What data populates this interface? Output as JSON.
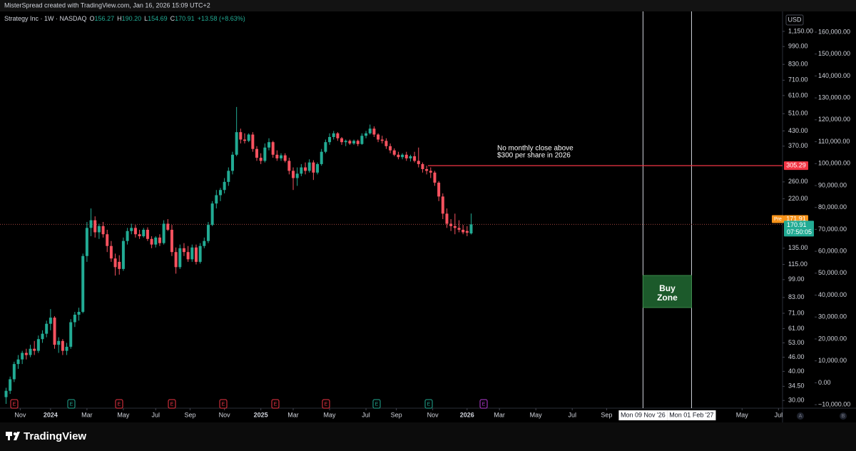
{
  "header": "MisterSpread created with TradingView.com, Jan 16, 2026 15:09 UTC+2",
  "footer_logo": "TradingView",
  "chart_data": {
    "type": "candlestick",
    "legend": {
      "symbol": "Strategy Inc · 1W · NASDAQ",
      "items": [
        {
          "key": "O",
          "value": "156.27"
        },
        {
          "key": "H",
          "value": "190.20"
        },
        {
          "key": "L",
          "value": "154.69"
        },
        {
          "key": "C",
          "value": "170.91"
        }
      ],
      "change": "+13.58 (+8.63%)"
    },
    "currency": "USD",
    "up_color": "#22ab94",
    "down_color": "#f7525f",
    "log_scale": true,
    "grid": false,
    "ylim": [
      27.8,
      1381
    ],
    "yticks": [
      {
        "value": 1150,
        "label": "1,150.00"
      },
      {
        "value": 990,
        "label": "990.00"
      },
      {
        "value": 830,
        "label": "830.00"
      },
      {
        "value": 710,
        "label": "710.00"
      },
      {
        "value": 610,
        "label": "610.00"
      },
      {
        "value": 510,
        "label": "510.00"
      },
      {
        "value": 430,
        "label": "430.00"
      },
      {
        "value": 370,
        "label": "370.00"
      },
      {
        "value": 260,
        "label": "260.00"
      },
      {
        "value": 220,
        "label": "220.00"
      },
      {
        "value": 135,
        "label": "135.00"
      },
      {
        "value": 115,
        "label": "115.00"
      },
      {
        "value": 99,
        "label": "99.00"
      },
      {
        "value": 83,
        "label": "83.00"
      },
      {
        "value": 71,
        "label": "71.00"
      },
      {
        "value": 61,
        "label": "61.00"
      },
      {
        "value": 53,
        "label": "53.00"
      },
      {
        "value": 46,
        "label": "46.00"
      },
      {
        "value": 40,
        "label": "40.00"
      },
      {
        "value": 34.5,
        "label": "34.50"
      },
      {
        "value": 30,
        "label": "30.00"
      }
    ],
    "y2lim": [
      -11600,
      168800
    ],
    "y2ticks": [
      {
        "value": 160000,
        "label": "160,000.00"
      },
      {
        "value": 150000,
        "label": "150,000.00"
      },
      {
        "value": 140000,
        "label": "140,000.00"
      },
      {
        "value": 130000,
        "label": "130,000.00"
      },
      {
        "value": 120000,
        "label": "120,000.00"
      },
      {
        "value": 110000,
        "label": "110,000.00"
      },
      {
        "value": 100000,
        "label": "100,000.00"
      },
      {
        "value": 90000,
        "label": "90,000.00"
      },
      {
        "value": 80000,
        "label": "80,000.00"
      },
      {
        "value": 70000,
        "label": "70,000.00"
      },
      {
        "value": 60000,
        "label": "60,000.00"
      },
      {
        "value": 50000,
        "label": "50,000.00"
      },
      {
        "value": 40000,
        "label": "40,000.00"
      },
      {
        "value": 30000,
        "label": "30,000.00"
      },
      {
        "value": 20000,
        "label": "20,000.00"
      },
      {
        "value": 10000,
        "label": "10,000.00"
      },
      {
        "value": 0,
        "label": "0.00"
      },
      {
        "value": -10000,
        "label": "−10,000.00"
      }
    ],
    "xlim": [
      -1.5,
      192
    ],
    "xticks": [
      {
        "value": 3.5,
        "label": "Nov"
      },
      {
        "value": 11,
        "label": "2024"
      },
      {
        "value": 20,
        "label": "Mar"
      },
      {
        "value": 29,
        "label": "May"
      },
      {
        "value": 37,
        "label": "Jul"
      },
      {
        "value": 45.5,
        "label": "Sep"
      },
      {
        "value": 54,
        "label": "Nov"
      },
      {
        "value": 63,
        "label": "2025"
      },
      {
        "value": 71,
        "label": "Mar"
      },
      {
        "value": 80,
        "label": "May"
      },
      {
        "value": 89,
        "label": "Jul"
      },
      {
        "value": 96.5,
        "label": "Sep"
      },
      {
        "value": 105.5,
        "label": "Nov"
      },
      {
        "value": 114,
        "label": "2026"
      },
      {
        "value": 122,
        "label": "Mar"
      },
      {
        "value": 131,
        "label": "May"
      },
      {
        "value": 140,
        "label": "Jul"
      },
      {
        "value": 148.5,
        "label": "Sep"
      },
      {
        "value": 182,
        "label": "May"
      },
      {
        "value": 191,
        "label": "Jul"
      }
    ],
    "date_markers": [
      {
        "value": 157.5,
        "label": "Mon 09 Nov '26"
      },
      {
        "value": 169.5,
        "label": "Mon 01 Feb '27"
      }
    ],
    "candles": [
      [
        31,
        34,
        29,
        33
      ],
      [
        33,
        38,
        32,
        37
      ],
      [
        37,
        44,
        36,
        43
      ],
      [
        43,
        47,
        41,
        45
      ],
      [
        45,
        49,
        43,
        48
      ],
      [
        48,
        50,
        45,
        47
      ],
      [
        47,
        52,
        46,
        50
      ],
      [
        50,
        54,
        47,
        49
      ],
      [
        49,
        57,
        48,
        55
      ],
      [
        55,
        60,
        53,
        58
      ],
      [
        58,
        66,
        56,
        64
      ],
      [
        64,
        74,
        60,
        68
      ],
      [
        68,
        69,
        50,
        52
      ],
      [
        52,
        56,
        48,
        54
      ],
      [
        54,
        55,
        47,
        49
      ],
      [
        49,
        53,
        47,
        51
      ],
      [
        51,
        67,
        50,
        65
      ],
      [
        65,
        72,
        62,
        70
      ],
      [
        70,
        75,
        66,
        72
      ],
      [
        72,
        128,
        71,
        125
      ],
      [
        125,
        175,
        118,
        165
      ],
      [
        165,
        200,
        152,
        178
      ],
      [
        178,
        185,
        150,
        158
      ],
      [
        158,
        172,
        148,
        168
      ],
      [
        168,
        175,
        150,
        155
      ],
      [
        155,
        162,
        130,
        138
      ],
      [
        138,
        145,
        118,
        122
      ],
      [
        122,
        128,
        103,
        112
      ],
      [
        118,
        126,
        104,
        110
      ],
      [
        110,
        150,
        108,
        145
      ],
      [
        145,
        165,
        140,
        160
      ],
      [
        160,
        172,
        155,
        165
      ],
      [
        165,
        170,
        150,
        155
      ],
      [
        155,
        162,
        148,
        152
      ],
      [
        152,
        165,
        150,
        162
      ],
      [
        162,
        166,
        145,
        148
      ],
      [
        148,
        152,
        135,
        140
      ],
      [
        140,
        152,
        136,
        150
      ],
      [
        150,
        155,
        138,
        142
      ],
      [
        142,
        178,
        140,
        172
      ],
      [
        172,
        180,
        160,
        162
      ],
      [
        162,
        170,
        125,
        130
      ],
      [
        130,
        136,
        105,
        112
      ],
      [
        112,
        140,
        110,
        135
      ],
      [
        135,
        142,
        125,
        130
      ],
      [
        130,
        138,
        118,
        121
      ],
      [
        121,
        140,
        118,
        136
      ],
      [
        136,
        140,
        115,
        118
      ],
      [
        118,
        142,
        116,
        138
      ],
      [
        138,
        150,
        135,
        145
      ],
      [
        145,
        175,
        142,
        170
      ],
      [
        170,
        215,
        168,
        210
      ],
      [
        210,
        240,
        200,
        228
      ],
      [
        228,
        245,
        215,
        240
      ],
      [
        240,
        270,
        232,
        260
      ],
      [
        260,
        300,
        250,
        290
      ],
      [
        290,
        350,
        280,
        340
      ],
      [
        340,
        545,
        335,
        425
      ],
      [
        425,
        440,
        380,
        395
      ],
      [
        395,
        420,
        380,
        390
      ],
      [
        390,
        420,
        385,
        415
      ],
      [
        415,
        425,
        350,
        360
      ],
      [
        360,
        370,
        320,
        330
      ],
      [
        330,
        345,
        310,
        320
      ],
      [
        320,
        380,
        315,
        365
      ],
      [
        365,
        400,
        355,
        385
      ],
      [
        385,
        390,
        330,
        340
      ],
      [
        340,
        355,
        320,
        328
      ],
      [
        328,
        345,
        320,
        338
      ],
      [
        338,
        345,
        315,
        320
      ],
      [
        320,
        330,
        280,
        290
      ],
      [
        290,
        300,
        240,
        270
      ],
      [
        270,
        300,
        250,
        282
      ],
      [
        282,
        310,
        275,
        300
      ],
      [
        300,
        315,
        280,
        290
      ],
      [
        290,
        325,
        285,
        315
      ],
      [
        315,
        322,
        265,
        285
      ],
      [
        285,
        315,
        280,
        310
      ],
      [
        310,
        360,
        305,
        350
      ],
      [
        350,
        395,
        345,
        385
      ],
      [
        385,
        420,
        375,
        405
      ],
      [
        405,
        430,
        395,
        420
      ],
      [
        420,
        425,
        390,
        400
      ],
      [
        400,
        405,
        375,
        385
      ],
      [
        385,
        395,
        370,
        390
      ],
      [
        390,
        395,
        375,
        380
      ],
      [
        380,
        395,
        375,
        390
      ],
      [
        390,
        395,
        370,
        378
      ],
      [
        378,
        420,
        375,
        410
      ],
      [
        410,
        430,
        400,
        420
      ],
      [
        420,
        458,
        415,
        440
      ],
      [
        440,
        450,
        405,
        415
      ],
      [
        415,
        420,
        385,
        395
      ],
      [
        395,
        410,
        380,
        390
      ],
      [
        390,
        400,
        360,
        370
      ],
      [
        370,
        380,
        345,
        355
      ],
      [
        355,
        362,
        335,
        340
      ],
      [
        340,
        350,
        325,
        332
      ],
      [
        332,
        345,
        325,
        340
      ],
      [
        340,
        350,
        320,
        328
      ],
      [
        328,
        340,
        318,
        335
      ],
      [
        335,
        350,
        315,
        320
      ],
      [
        320,
        365,
        300,
        310
      ],
      [
        310,
        315,
        285,
        295
      ],
      [
        295,
        305,
        280,
        290
      ],
      [
        290,
        300,
        270,
        285
      ],
      [
        285,
        290,
        250,
        258
      ],
      [
        258,
        262,
        215,
        225
      ],
      [
        225,
        232,
        180,
        190
      ],
      [
        190,
        200,
        165,
        172
      ],
      [
        172,
        180,
        160,
        168
      ],
      [
        168,
        190,
        155,
        165
      ],
      [
        165,
        178,
        158,
        162
      ],
      [
        162,
        170,
        155,
        158
      ],
      [
        160,
        168,
        152,
        157.33
      ],
      [
        156.27,
        190.2,
        154.69,
        170.91
      ]
    ],
    "price_lines": [
      {
        "value": 305.29,
        "color": "#f23645"
      }
    ],
    "last_price": {
      "value": 170.91,
      "countdown": "07:50:05",
      "color": "#22ab94"
    },
    "premarket": {
      "tag": "Pre",
      "value": 171.91,
      "color": "#f7931a"
    },
    "annotation": [
      "No monthly close above",
      "$300 per share in 2026"
    ],
    "buy_zone": [
      "Buy",
      "Zone"
    ],
    "earnings": [
      {
        "label": "E",
        "color": "#f23645"
      },
      {
        "label": "E",
        "color": "#22ab94"
      },
      {
        "label": "E",
        "color": "#f23645"
      },
      {
        "label": "E",
        "color": "#f23645"
      },
      {
        "label": "E",
        "color": "#f23645"
      },
      {
        "label": "E",
        "color": "#f23645"
      },
      {
        "label": "E",
        "color": "#f23645"
      },
      {
        "label": "E",
        "color": "#22ab94"
      },
      {
        "label": "E",
        "color": "#22ab94"
      },
      {
        "label": "E",
        "color": "#b63bd6"
      }
    ],
    "axis_buttons": [
      "A",
      "B"
    ]
  }
}
